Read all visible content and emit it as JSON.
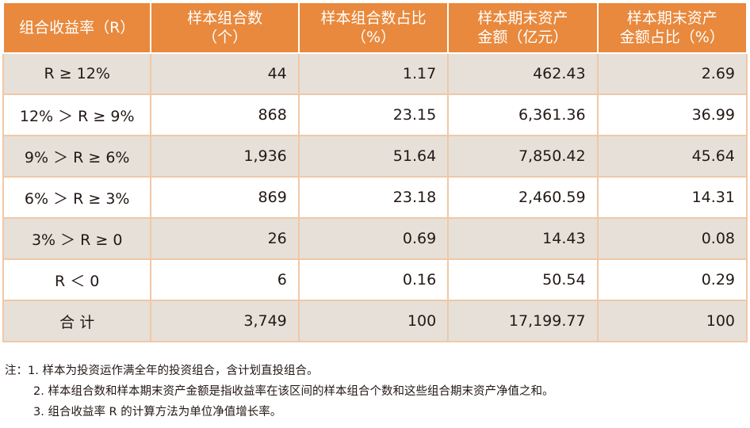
{
  "table": {
    "headers": [
      [
        "组合收益率（R）"
      ],
      [
        "样本组合数",
        "（个）"
      ],
      [
        "样本组合数占比",
        "（%）"
      ],
      [
        "样本期末资产",
        "金额（亿元）"
      ],
      [
        "样本期末资产",
        "金额占比（%）"
      ]
    ],
    "rows": [
      [
        "R ≥ 12%",
        "44",
        "1.17",
        "462.43",
        "2.69"
      ],
      [
        "12% ＞ R ≥ 9%",
        "868",
        "23.15",
        "6,361.36",
        "36.99"
      ],
      [
        "9% ＞ R ≥ 6%",
        "1,936",
        "51.64",
        "7,850.42",
        "45.64"
      ],
      [
        "6% ＞ R ≥ 3%",
        "869",
        "23.18",
        "2,460.59",
        "14.31"
      ],
      [
        "3% ＞ R ≥ 0",
        "26",
        "0.69",
        "14.43",
        "0.08"
      ],
      [
        "R ＜ 0",
        "6",
        "0.16",
        "50.54",
        "0.29"
      ],
      [
        "合 计",
        "3,749",
        "100",
        "17,199.77",
        "100"
      ]
    ]
  },
  "notes": {
    "prefix": "注：",
    "items": [
      "1. 样本为投资运作满全年的投资组合，含计划直投组合。",
      "2. 样本组合数和样本期末资产金额是指收益率在该区间的样本组合个数和这些组合期末资产净值之和。",
      "3. 组合收益率 R 的计算方法为单位净值增长率。"
    ]
  },
  "colors": {
    "header_bg": "#e8893d",
    "row_shade": "#e6e0d9",
    "border": "#f0c8a6"
  }
}
